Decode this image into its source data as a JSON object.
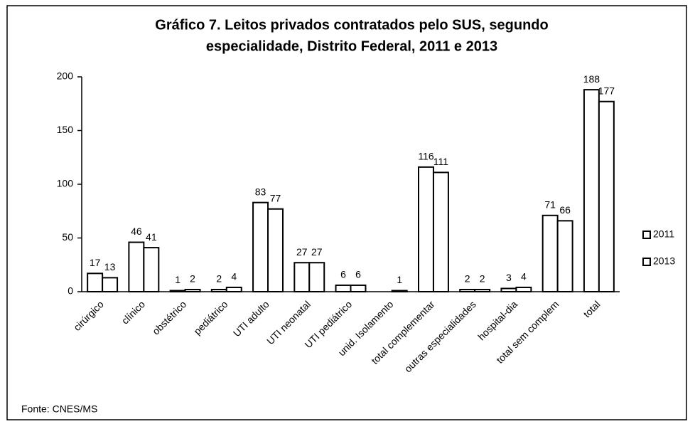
{
  "chart_data": {
    "type": "bar",
    "title": "Gráfico 7. Leitos privados contratados pelo SUS, segundo",
    "subtitle": "especialidade, Distrito Federal, 2011 e 2013",
    "categories": [
      "cirúrgico",
      "clínico",
      "obstétrico",
      "pediátrico",
      "UTI adulto",
      "UTI neonatal",
      "UTI pediátrico",
      "unid. Isolamento",
      "total complementar",
      "outras especialidades",
      "hospital-dia",
      "total sem complem",
      "total"
    ],
    "series": [
      {
        "name": "2011",
        "color": "#ffffff",
        "values": [
          17,
          46,
          1,
          2,
          83,
          27,
          6,
          null,
          116,
          2,
          3,
          71,
          188
        ]
      },
      {
        "name": "2013",
        "color": "#ffffff",
        "values": [
          13,
          41,
          2,
          4,
          77,
          27,
          6,
          1,
          111,
          2,
          4,
          66,
          177
        ]
      }
    ],
    "ylim": [
      0,
      200
    ],
    "yticks": [
      0,
      50,
      100,
      150,
      200
    ],
    "grid": false,
    "legend": "right",
    "source": "Fonte: CNES/MS"
  }
}
